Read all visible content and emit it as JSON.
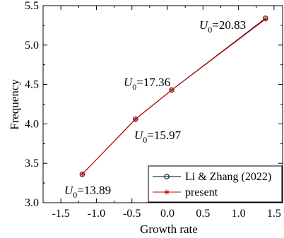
{
  "chart_data": {
    "type": "line",
    "xlabel": "Growth rate",
    "ylabel": "Frequency",
    "xlim": [
      -1.75,
      1.62
    ],
    "ylim": [
      3.0,
      5.5
    ],
    "xticks": [
      -1.5,
      -1.0,
      -0.5,
      0.0,
      0.5,
      1.0,
      1.5
    ],
    "xtick_labels": [
      "-1.5",
      "-1.0",
      "-0.5",
      "0.0",
      "0.5",
      "1.0",
      "1.5"
    ],
    "yticks": [
      3.0,
      3.5,
      4.0,
      4.5,
      5.0,
      5.5
    ],
    "ytick_labels": [
      "3.0",
      "3.5",
      "4.0",
      "4.5",
      "5.0",
      "5.5"
    ],
    "series": [
      {
        "name": "Li & Zhang (2022)",
        "marker": "open-circle",
        "color": "#000000",
        "x": [
          -1.2,
          -0.45,
          0.06,
          1.38
        ],
        "y": [
          3.36,
          4.06,
          4.43,
          5.34
        ]
      },
      {
        "name": "present",
        "marker": "asterisk",
        "color": "#cc0000",
        "x": [
          -1.2,
          -0.45,
          0.06,
          1.38
        ],
        "y": [
          3.36,
          4.06,
          4.43,
          5.33
        ]
      }
    ],
    "annotations": [
      {
        "prefix": "U",
        "sub": "0",
        "value": "=13.89",
        "near": "bottom-left point"
      },
      {
        "prefix": "U",
        "sub": "0",
        "value": "=15.97",
        "near": "second point, below"
      },
      {
        "prefix": "U",
        "sub": "0",
        "value": "=17.36",
        "near": "third point, above-left"
      },
      {
        "prefix": "U",
        "sub": "0",
        "value": "=20.83",
        "near": "top-right point, left"
      }
    ],
    "legend_position": "bottom-right",
    "grid": false
  }
}
